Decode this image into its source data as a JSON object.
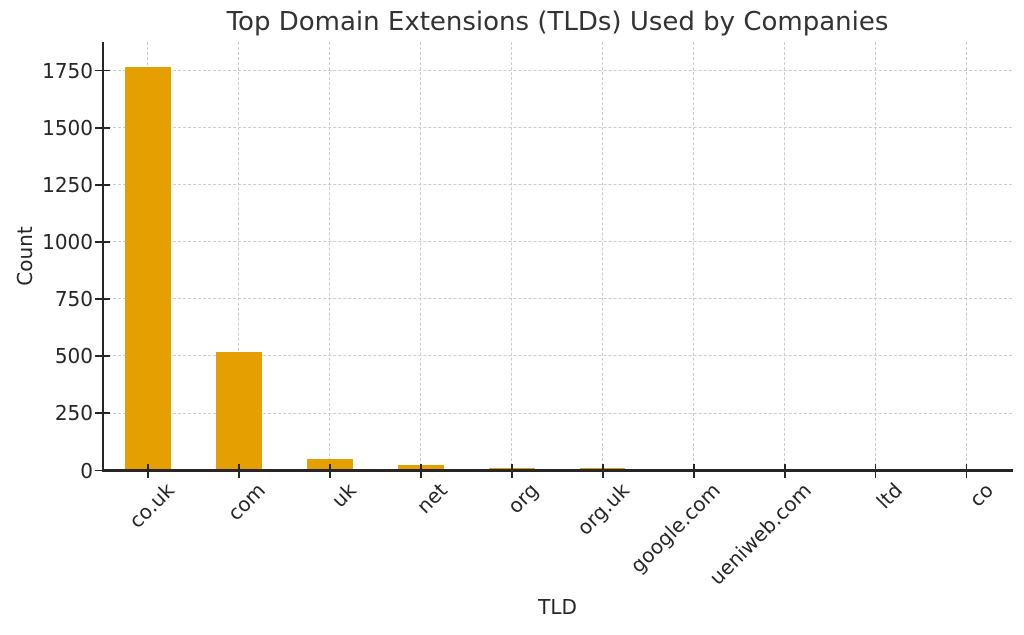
{
  "title": "Top Domain Extensions (TLDs) Used by Companies",
  "chart_data": {
    "type": "bar",
    "title": "Top Domain Extensions (TLDs) Used by Companies",
    "xlabel": "TLD",
    "ylabel": "Count",
    "categories": [
      "co.uk",
      "com",
      "uk",
      "net",
      "org",
      "org.uk",
      "google.com",
      "ueniweb.com",
      "ltd",
      "co"
    ],
    "values": [
      1765,
      517,
      50,
      25,
      10,
      9,
      8,
      8,
      7,
      7
    ],
    "yticks": [
      0,
      250,
      500,
      750,
      1000,
      1250,
      1500,
      1750
    ],
    "ylim": [
      0,
      1875
    ],
    "grid": true,
    "grid_style": "dashed",
    "legend": "none",
    "colors": {
      "bar": "#E69F00",
      "grid": "#CCCCCC",
      "axis": "#262626",
      "text": "#262626",
      "title": "#333333"
    }
  }
}
